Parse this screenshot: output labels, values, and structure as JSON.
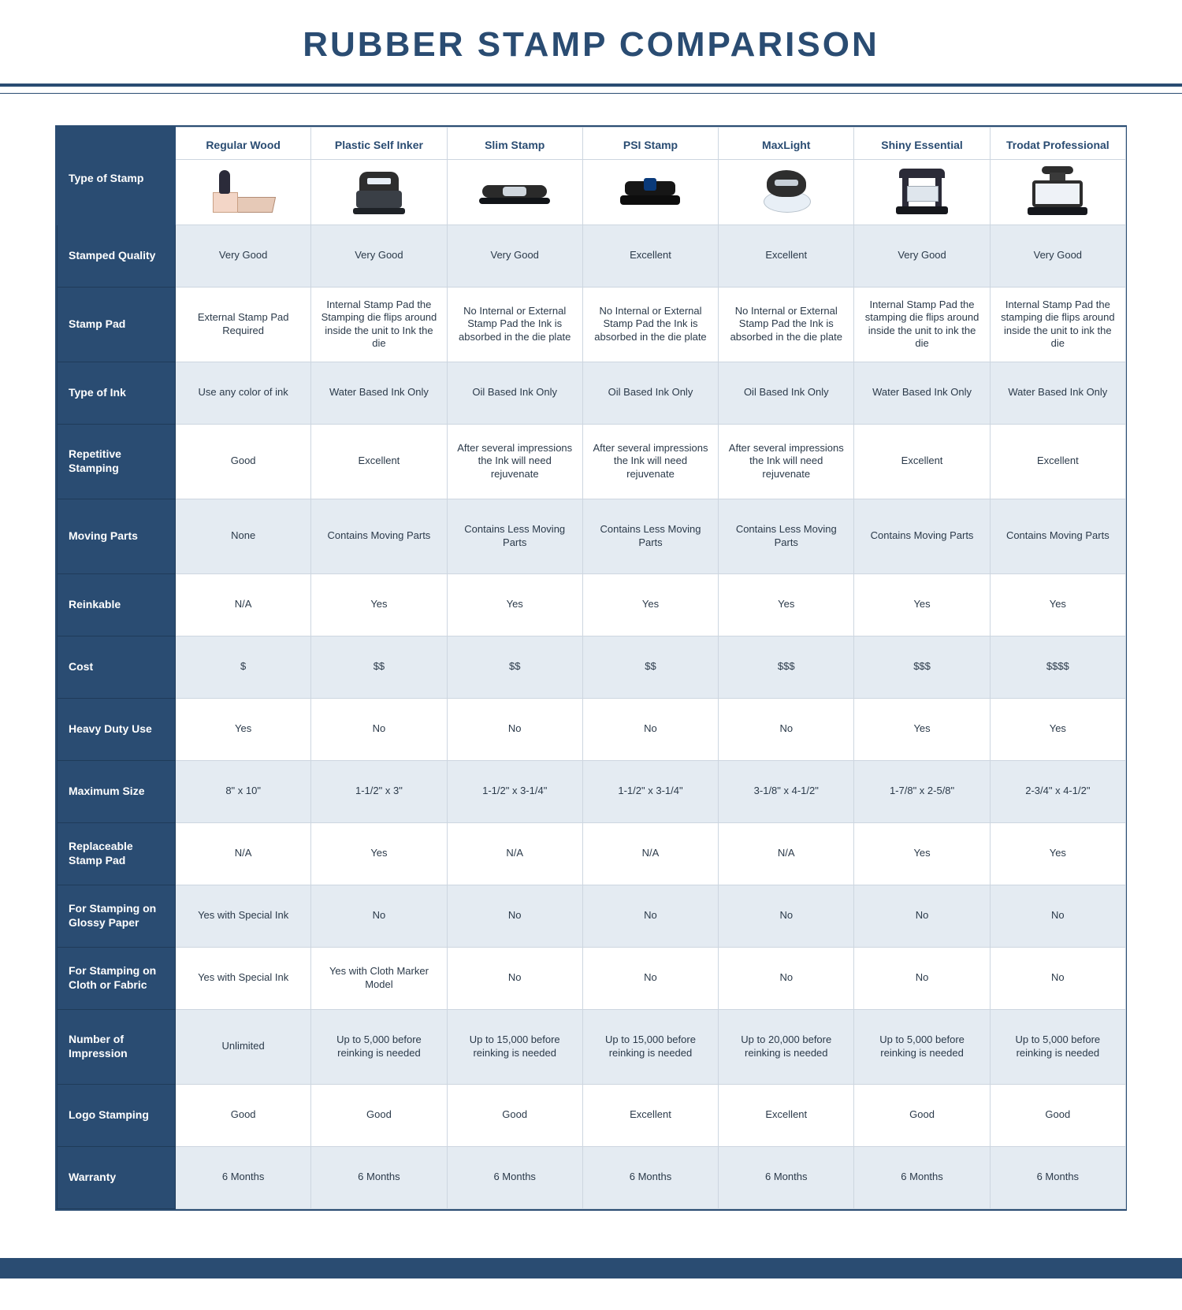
{
  "title": "RUBBER STAMP COMPARISON",
  "colors": {
    "brand": "#2a4c72",
    "row_alt": "#e4ebf2",
    "border": "#cdd6e0"
  },
  "columns": [
    "Regular Wood",
    "Plastic Self Inker",
    "Slim Stamp",
    "PSI Stamp",
    "MaxLight",
    "Shiny Essential",
    "Trodat Professional"
  ],
  "thumb_label": "Type of Stamp",
  "thumbs": [
    {
      "type": "wood",
      "icon_name": "wood-stamp-icon"
    },
    {
      "type": "selfinker",
      "icon_name": "self-inker-icon"
    },
    {
      "type": "slim",
      "icon_name": "slim-stamp-icon"
    },
    {
      "type": "psi",
      "icon_name": "psi-stamp-icon"
    },
    {
      "type": "maxlight",
      "icon_name": "maxlight-stamp-icon"
    },
    {
      "type": "shiny",
      "icon_name": "shiny-essential-icon"
    },
    {
      "type": "trodat",
      "icon_name": "trodat-professional-icon"
    }
  ],
  "rows": [
    {
      "label": "Stamped Quality",
      "alt": true,
      "size": "med",
      "cells": [
        "Very Good",
        "Very Good",
        "Very Good",
        "Excellent",
        "Excellent",
        "Very Good",
        "Very Good"
      ]
    },
    {
      "label": "Stamp Pad",
      "alt": false,
      "size": "tall",
      "cells": [
        "External Stamp Pad Required",
        "Internal Stamp Pad the Stamping die flips around inside the unit to Ink the die",
        "No Internal or External Stamp Pad the Ink is absorbed in the die plate",
        "No Internal or External Stamp Pad the Ink is absorbed in the die plate",
        "No Internal or External Stamp Pad the Ink is absorbed in the die plate",
        "Internal Stamp Pad the stamping die flips around inside the unit to ink the die",
        "Internal Stamp Pad the stamping die flips around inside the unit to ink the die"
      ]
    },
    {
      "label": "Type of Ink",
      "alt": true,
      "size": "med",
      "cells": [
        "Use any color of ink",
        "Water Based Ink Only",
        "Oil Based Ink Only",
        "Oil Based Ink Only",
        "Oil Based Ink Only",
        "Water Based Ink Only",
        "Water Based Ink Only"
      ]
    },
    {
      "label": "Repetitive Stamping",
      "alt": false,
      "size": "tall",
      "cells": [
        "Good",
        "Excellent",
        "After several impressions the Ink will need rejuvenate",
        "After several impressions the Ink will need rejuvenate",
        "After several impressions the Ink will need rejuvenate",
        "Excellent",
        "Excellent"
      ]
    },
    {
      "label": "Moving Parts",
      "alt": true,
      "size": "tall",
      "cells": [
        "None",
        "Contains Moving Parts",
        "Contains Less Moving Parts",
        "Contains Less Moving Parts",
        "Contains Less Moving Parts",
        "Contains Moving Parts",
        "Contains Moving Parts"
      ]
    },
    {
      "label": "Reinkable",
      "alt": false,
      "size": "med",
      "cells": [
        "N/A",
        "Yes",
        "Yes",
        "Yes",
        "Yes",
        "Yes",
        "Yes"
      ]
    },
    {
      "label": "Cost",
      "alt": true,
      "size": "med",
      "cells": [
        "$",
        "$$",
        "$$",
        "$$",
        "$$$",
        "$$$",
        "$$$$"
      ]
    },
    {
      "label": "Heavy Duty Use",
      "alt": false,
      "size": "med",
      "cells": [
        "Yes",
        "No",
        "No",
        "No",
        "No",
        "Yes",
        "Yes"
      ]
    },
    {
      "label": "Maximum Size",
      "alt": true,
      "size": "med",
      "cells": [
        "8\" x 10\"",
        "1-1/2\" x 3\"",
        "1-1/2\" x 3-1/4\"",
        "1-1/2\" x 3-1/4\"",
        "3-1/8\" x 4-1/2\"",
        "1-7/8\" x 2-5/8\"",
        "2-3/4\" x 4-1/2\""
      ]
    },
    {
      "label": "Replaceable Stamp Pad",
      "alt": false,
      "size": "med",
      "cells": [
        "N/A",
        "Yes",
        "N/A",
        "N/A",
        "N/A",
        "Yes",
        "Yes"
      ]
    },
    {
      "label": "For Stamping on Glossy Paper",
      "alt": true,
      "size": "med",
      "cells": [
        "Yes with Special Ink",
        "No",
        "No",
        "No",
        "No",
        "No",
        "No"
      ]
    },
    {
      "label": "For Stamping on Cloth or Fabric",
      "alt": false,
      "size": "med",
      "cells": [
        "Yes with Special Ink",
        "Yes with Cloth Marker Model",
        "No",
        "No",
        "No",
        "No",
        "No"
      ]
    },
    {
      "label": "Number of Impression",
      "alt": true,
      "size": "tall",
      "cells": [
        "Unlimited",
        "Up to 5,000 before reinking is needed",
        "Up to 15,000 before reinking is needed",
        "Up to 15,000 before reinking is needed",
        "Up to 20,000 before reinking is needed",
        "Up to 5,000 before reinking is needed",
        "Up to 5,000 before reinking is needed"
      ]
    },
    {
      "label": "Logo Stamping",
      "alt": false,
      "size": "med",
      "cells": [
        "Good",
        "Good",
        "Good",
        "Excellent",
        "Excellent",
        "Good",
        "Good"
      ]
    },
    {
      "label": "Warranty",
      "alt": true,
      "size": "med",
      "cells": [
        "6 Months",
        "6 Months",
        "6 Months",
        "6 Months",
        "6 Months",
        "6 Months",
        "6 Months"
      ]
    }
  ]
}
